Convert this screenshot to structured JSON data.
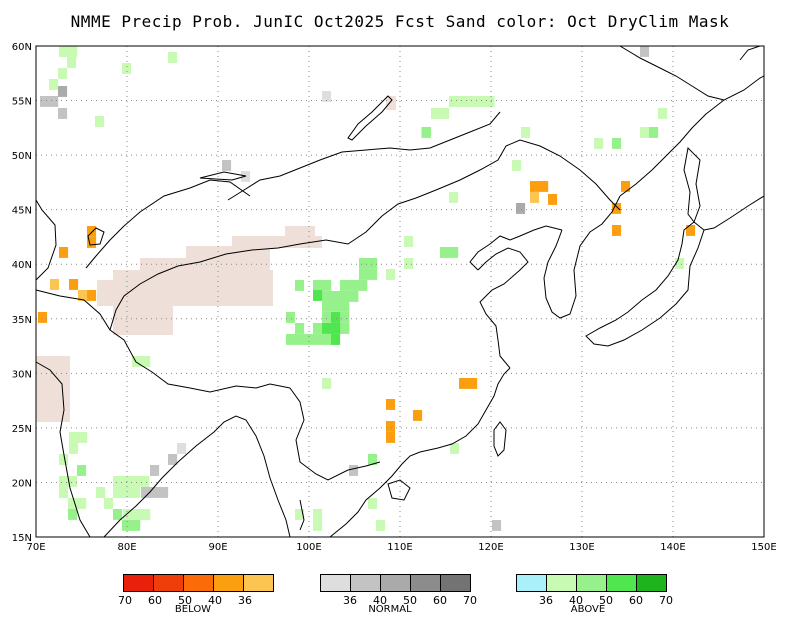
{
  "title": "NMME Precip Prob. JunIC  Oct2025 Fcst  Sand color: Oct DryClim Mask",
  "lat_labels": [
    "60N",
    "55N",
    "50N",
    "45N",
    "40N",
    "35N",
    "30N",
    "25N",
    "20N",
    "15N"
  ],
  "lon_labels": [
    "70E",
    "80E",
    "90E",
    "100E",
    "110E",
    "120E",
    "130E",
    "140E",
    "150E"
  ],
  "colors": {
    "sand": "#eee0d8",
    "coast": "#000000",
    "grid": "#888888"
  },
  "legends": [
    {
      "category": "BELOW",
      "colors": [
        "#e8200c",
        "#f03e0a",
        "#fb6b07",
        "#fb9f10",
        "#fcc450"
      ],
      "ticks": [
        "70",
        "60",
        "50",
        "40",
        "36"
      ]
    },
    {
      "category": "NORMAL",
      "colors": [
        "#dedede",
        "#c3c3c3",
        "#aaaaaa",
        "#8c8c8c",
        "#737373"
      ],
      "ticks": [
        "36",
        "40",
        "50",
        "60",
        "70"
      ]
    },
    {
      "category": "ABOVE",
      "colors": [
        "#aaf0fa",
        "#c8fab4",
        "#96f08c",
        "#50e650",
        "#1eb41e"
      ],
      "ticks": [
        "36",
        "40",
        "50",
        "60",
        "70"
      ]
    }
  ]
}
